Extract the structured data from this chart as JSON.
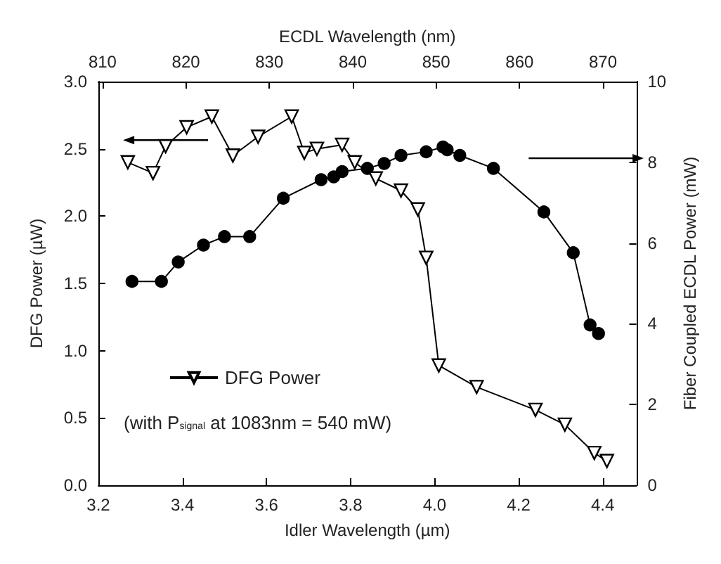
{
  "chart_data": {
    "type": "line",
    "xlabel": "Idler Wavelength (µm)",
    "ylabel": "DFG Power (µW)",
    "y2label": "Fiber Coupled ECDL Power (mW)",
    "x2label": "ECDL Wavelength (nm)",
    "xlim": [
      3.2,
      4.48
    ],
    "xticks": [
      3.2,
      3.4,
      3.6,
      3.8,
      {
        "value": 4,
        "label": "4.0"
      },
      4.2,
      4.4
    ],
    "x2lim": [
      809.5,
      874
    ],
    "x2ticks": [
      810,
      820,
      830,
      840,
      850,
      860,
      870
    ],
    "ylim": [
      0,
      3
    ],
    "yticks": [
      {
        "value": 0,
        "label": "0.0"
      },
      0.5,
      {
        "value": 1,
        "label": "1.0"
      },
      1.5,
      {
        "value": 2,
        "label": "2.0"
      },
      2.5,
      {
        "value": 3,
        "label": "3.0"
      }
    ],
    "y2lim": [
      0,
      10
    ],
    "y2ticks": [
      0,
      2,
      4,
      6,
      8,
      10
    ],
    "grid": false,
    "legend": "bottom left",
    "line_style": "solid",
    "annotations": [
      "(with P$_{signal}$ at 1083nm = 540 mW)"
    ],
    "series": [
      {
        "name": "DFG Power",
        "color": "#000000",
        "marker": "triangle",
        "x": [
          3.27,
          3.33,
          3.36,
          3.41,
          3.47,
          3.52,
          3.58,
          3.66,
          3.69,
          3.72,
          3.78,
          3.81,
          3.86,
          3.92,
          3.96,
          3.98,
          4.01,
          4.1,
          4.24,
          4.31,
          4.38,
          4.41
        ],
        "values": [
          2.4,
          2.32,
          2.52,
          2.66,
          2.74,
          2.45,
          2.59,
          2.74,
          2.47,
          2.5,
          2.53,
          2.4,
          2.28,
          2.19,
          2.05,
          1.69,
          0.89,
          0.73,
          0.56,
          0.45,
          0.24,
          0.18
        ]
      },
      {
        "color": "#000000",
        "marker": "circle",
        "axis": "y2",
        "x": [
          3.28,
          3.35,
          3.39,
          3.45,
          3.5,
          3.56,
          3.64,
          3.73,
          3.76,
          3.78,
          3.84,
          3.88,
          3.92,
          3.98,
          4.02,
          4.03,
          4.06,
          4.14,
          4.26,
          4.33,
          4.37,
          4.39
        ],
        "values": [
          5.05,
          5.05,
          5.53,
          5.95,
          6.16,
          6.16,
          7.11,
          7.57,
          7.64,
          7.77,
          7.85,
          7.97,
          8.17,
          8.26,
          8.38,
          8.31,
          8.17,
          7.85,
          6.77,
          5.76,
          3.97,
          3.76
        ]
      }
    ]
  }
}
